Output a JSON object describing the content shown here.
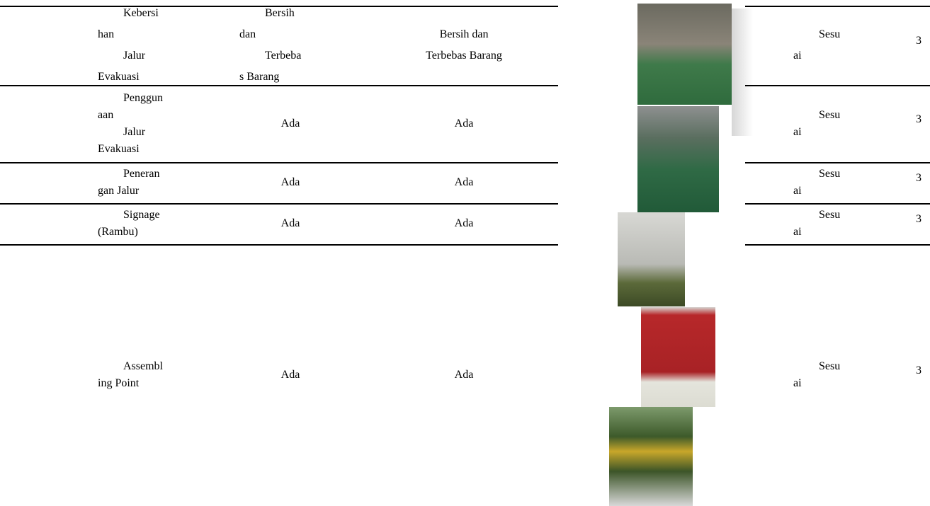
{
  "table": {
    "rows": [
      {
        "item": [
          "Kebersi",
          "han",
          "Jalur",
          "Evakuasi"
        ],
        "standard": [
          "Bersih",
          "dan",
          "Terbeba",
          "s Barang"
        ],
        "condition": [
          "Bersih dan",
          "Terbebas Barang"
        ],
        "result": [
          "Sesu",
          "ai"
        ],
        "score": "3"
      },
      {
        "item": [
          "Penggun",
          "aan",
          "Jalur",
          "Evakuasi"
        ],
        "standard": [
          "Ada"
        ],
        "condition": [
          "Ada"
        ],
        "result": [
          "Sesu",
          "ai"
        ],
        "score": "3"
      },
      {
        "item": [
          "Peneran",
          "gan Jalur"
        ],
        "standard": [
          "Ada"
        ],
        "condition": [
          "Ada"
        ],
        "result": [
          "Sesu",
          "ai"
        ],
        "score": "3"
      },
      {
        "item": [
          "Signage",
          "(Rambu)"
        ],
        "standard": [
          "Ada"
        ],
        "condition": [
          "Ada"
        ],
        "result": [
          "Sesu",
          "ai"
        ],
        "score": "3"
      },
      {
        "item": [
          "Assembl",
          "ing Point"
        ],
        "standard": [
          "Ada"
        ],
        "condition": [
          "Ada"
        ],
        "result": [
          "Sesu",
          "ai"
        ],
        "score": "3"
      }
    ]
  }
}
